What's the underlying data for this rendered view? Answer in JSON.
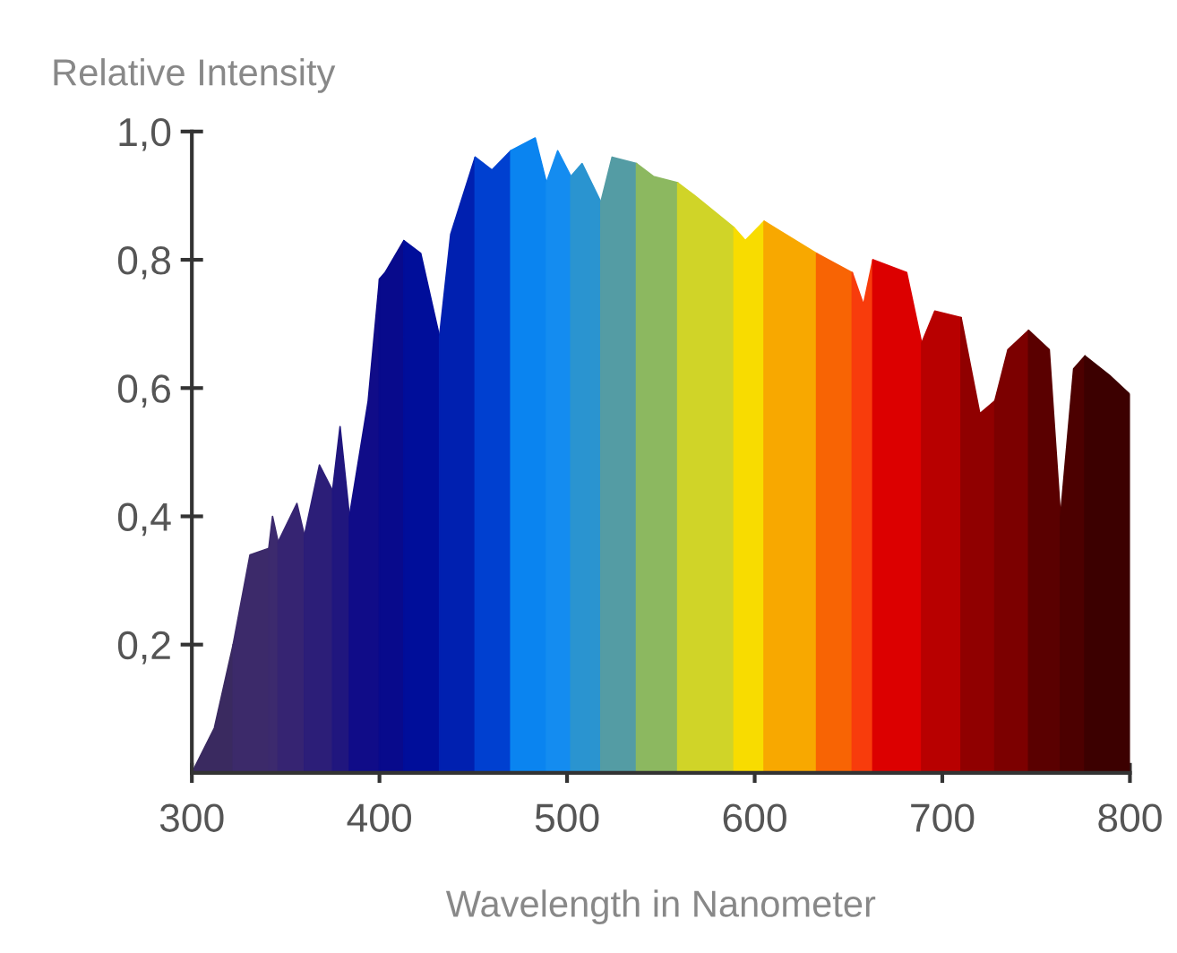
{
  "chart_data": {
    "type": "area",
    "ylabel": "Relative Intensity",
    "xlabel": "Wavelength in Nanometer",
    "series": [
      {
        "color": "#3a2a60",
        "x": [
          300,
          312,
          322
        ],
        "values": [
          0.0,
          0.07,
          0.2
        ]
      },
      {
        "color": "#3c2a6a",
        "x": [
          322,
          331,
          341
        ],
        "values": [
          0.2,
          0.34,
          0.35
        ]
      },
      {
        "color": "#3c2a6e",
        "x": [
          341,
          343,
          346
        ],
        "values": [
          0.35,
          0.4,
          0.36
        ]
      },
      {
        "color": "#362472",
        "x": [
          346,
          356,
          360
        ],
        "values": [
          0.36,
          0.42,
          0.37
        ]
      },
      {
        "color": "#2c1e78",
        "x": [
          360,
          368,
          375
        ],
        "values": [
          0.37,
          0.48,
          0.44
        ]
      },
      {
        "color": "#20167e",
        "x": [
          375,
          379,
          384
        ],
        "values": [
          0.44,
          0.54,
          0.4
        ]
      },
      {
        "color": "#100c88",
        "x": [
          384,
          394,
          400
        ],
        "values": [
          0.4,
          0.58,
          0.77
        ]
      },
      {
        "color": "#080a8c",
        "x": [
          400,
          403,
          413
        ],
        "values": [
          0.77,
          0.78,
          0.83
        ]
      },
      {
        "color": "#000e9a",
        "x": [
          413,
          422,
          432
        ],
        "values": [
          0.83,
          0.81,
          0.68
        ]
      },
      {
        "color": "#0020b0",
        "x": [
          432,
          438,
          451
        ],
        "values": [
          0.68,
          0.84,
          0.96
        ]
      },
      {
        "color": "#0040d0",
        "x": [
          451,
          460,
          470
        ],
        "values": [
          0.96,
          0.94,
          0.97
        ]
      },
      {
        "color": "#0a84f0",
        "x": [
          470,
          483,
          489
        ],
        "values": [
          0.97,
          0.99,
          0.92
        ]
      },
      {
        "color": "#148cf0",
        "x": [
          489,
          495,
          502
        ],
        "values": [
          0.92,
          0.97,
          0.93
        ]
      },
      {
        "color": "#2a94d0",
        "x": [
          502,
          508,
          518
        ],
        "values": [
          0.93,
          0.95,
          0.89
        ]
      },
      {
        "color": "#549ca4",
        "x": [
          518,
          524,
          537
        ],
        "values": [
          0.89,
          0.96,
          0.95
        ]
      },
      {
        "color": "#8cb860",
        "x": [
          537,
          546,
          559
        ],
        "values": [
          0.95,
          0.93,
          0.92
        ]
      },
      {
        "color": "#d0d428",
        "x": [
          559,
          568,
          589
        ],
        "values": [
          0.92,
          0.9,
          0.85
        ]
      },
      {
        "color": "#f8dc00",
        "x": [
          589,
          595,
          605
        ],
        "values": [
          0.85,
          0.83,
          0.86
        ]
      },
      {
        "color": "#f8a800",
        "x": [
          605,
          633
        ],
        "values": [
          0.86,
          0.81
        ]
      },
      {
        "color": "#f86404",
        "x": [
          633,
          652
        ],
        "values": [
          0.81,
          0.78
        ]
      },
      {
        "color": "#f83c0c",
        "x": [
          652,
          658,
          663
        ],
        "values": [
          0.78,
          0.73,
          0.8
        ]
      },
      {
        "color": "#dc0000",
        "x": [
          663,
          681,
          689
        ],
        "values": [
          0.8,
          0.78,
          0.67
        ]
      },
      {
        "color": "#b80000",
        "x": [
          689,
          696,
          710
        ],
        "values": [
          0.67,
          0.72,
          0.71
        ]
      },
      {
        "color": "#900000",
        "x": [
          710,
          720,
          728
        ],
        "values": [
          0.71,
          0.56,
          0.58
        ]
      },
      {
        "color": "#7c0000",
        "x": [
          728,
          735,
          746
        ],
        "values": [
          0.58,
          0.66,
          0.69
        ]
      },
      {
        "color": "#5a0000",
        "x": [
          746,
          757,
          763
        ],
        "values": [
          0.69,
          0.66,
          0.4
        ]
      },
      {
        "color": "#4c0000",
        "x": [
          763,
          770,
          776
        ],
        "values": [
          0.4,
          0.63,
          0.65
        ]
      },
      {
        "color": "#3c0000",
        "x": [
          776,
          789,
          800
        ],
        "values": [
          0.65,
          0.62,
          0.59
        ]
      }
    ],
    "xlim": [
      300,
      800
    ],
    "ylim": [
      0,
      1.0
    ],
    "xticks": [
      300,
      400,
      500,
      600,
      700,
      800
    ],
    "yticks": [
      {
        "value": 0.2,
        "label": "0,2"
      },
      {
        "value": 0.4,
        "label": "0,4"
      },
      {
        "value": 0.6,
        "label": "0,6"
      },
      {
        "value": 0.8,
        "label": "0,8"
      },
      {
        "value": 1.0,
        "label": "1,0"
      }
    ]
  }
}
